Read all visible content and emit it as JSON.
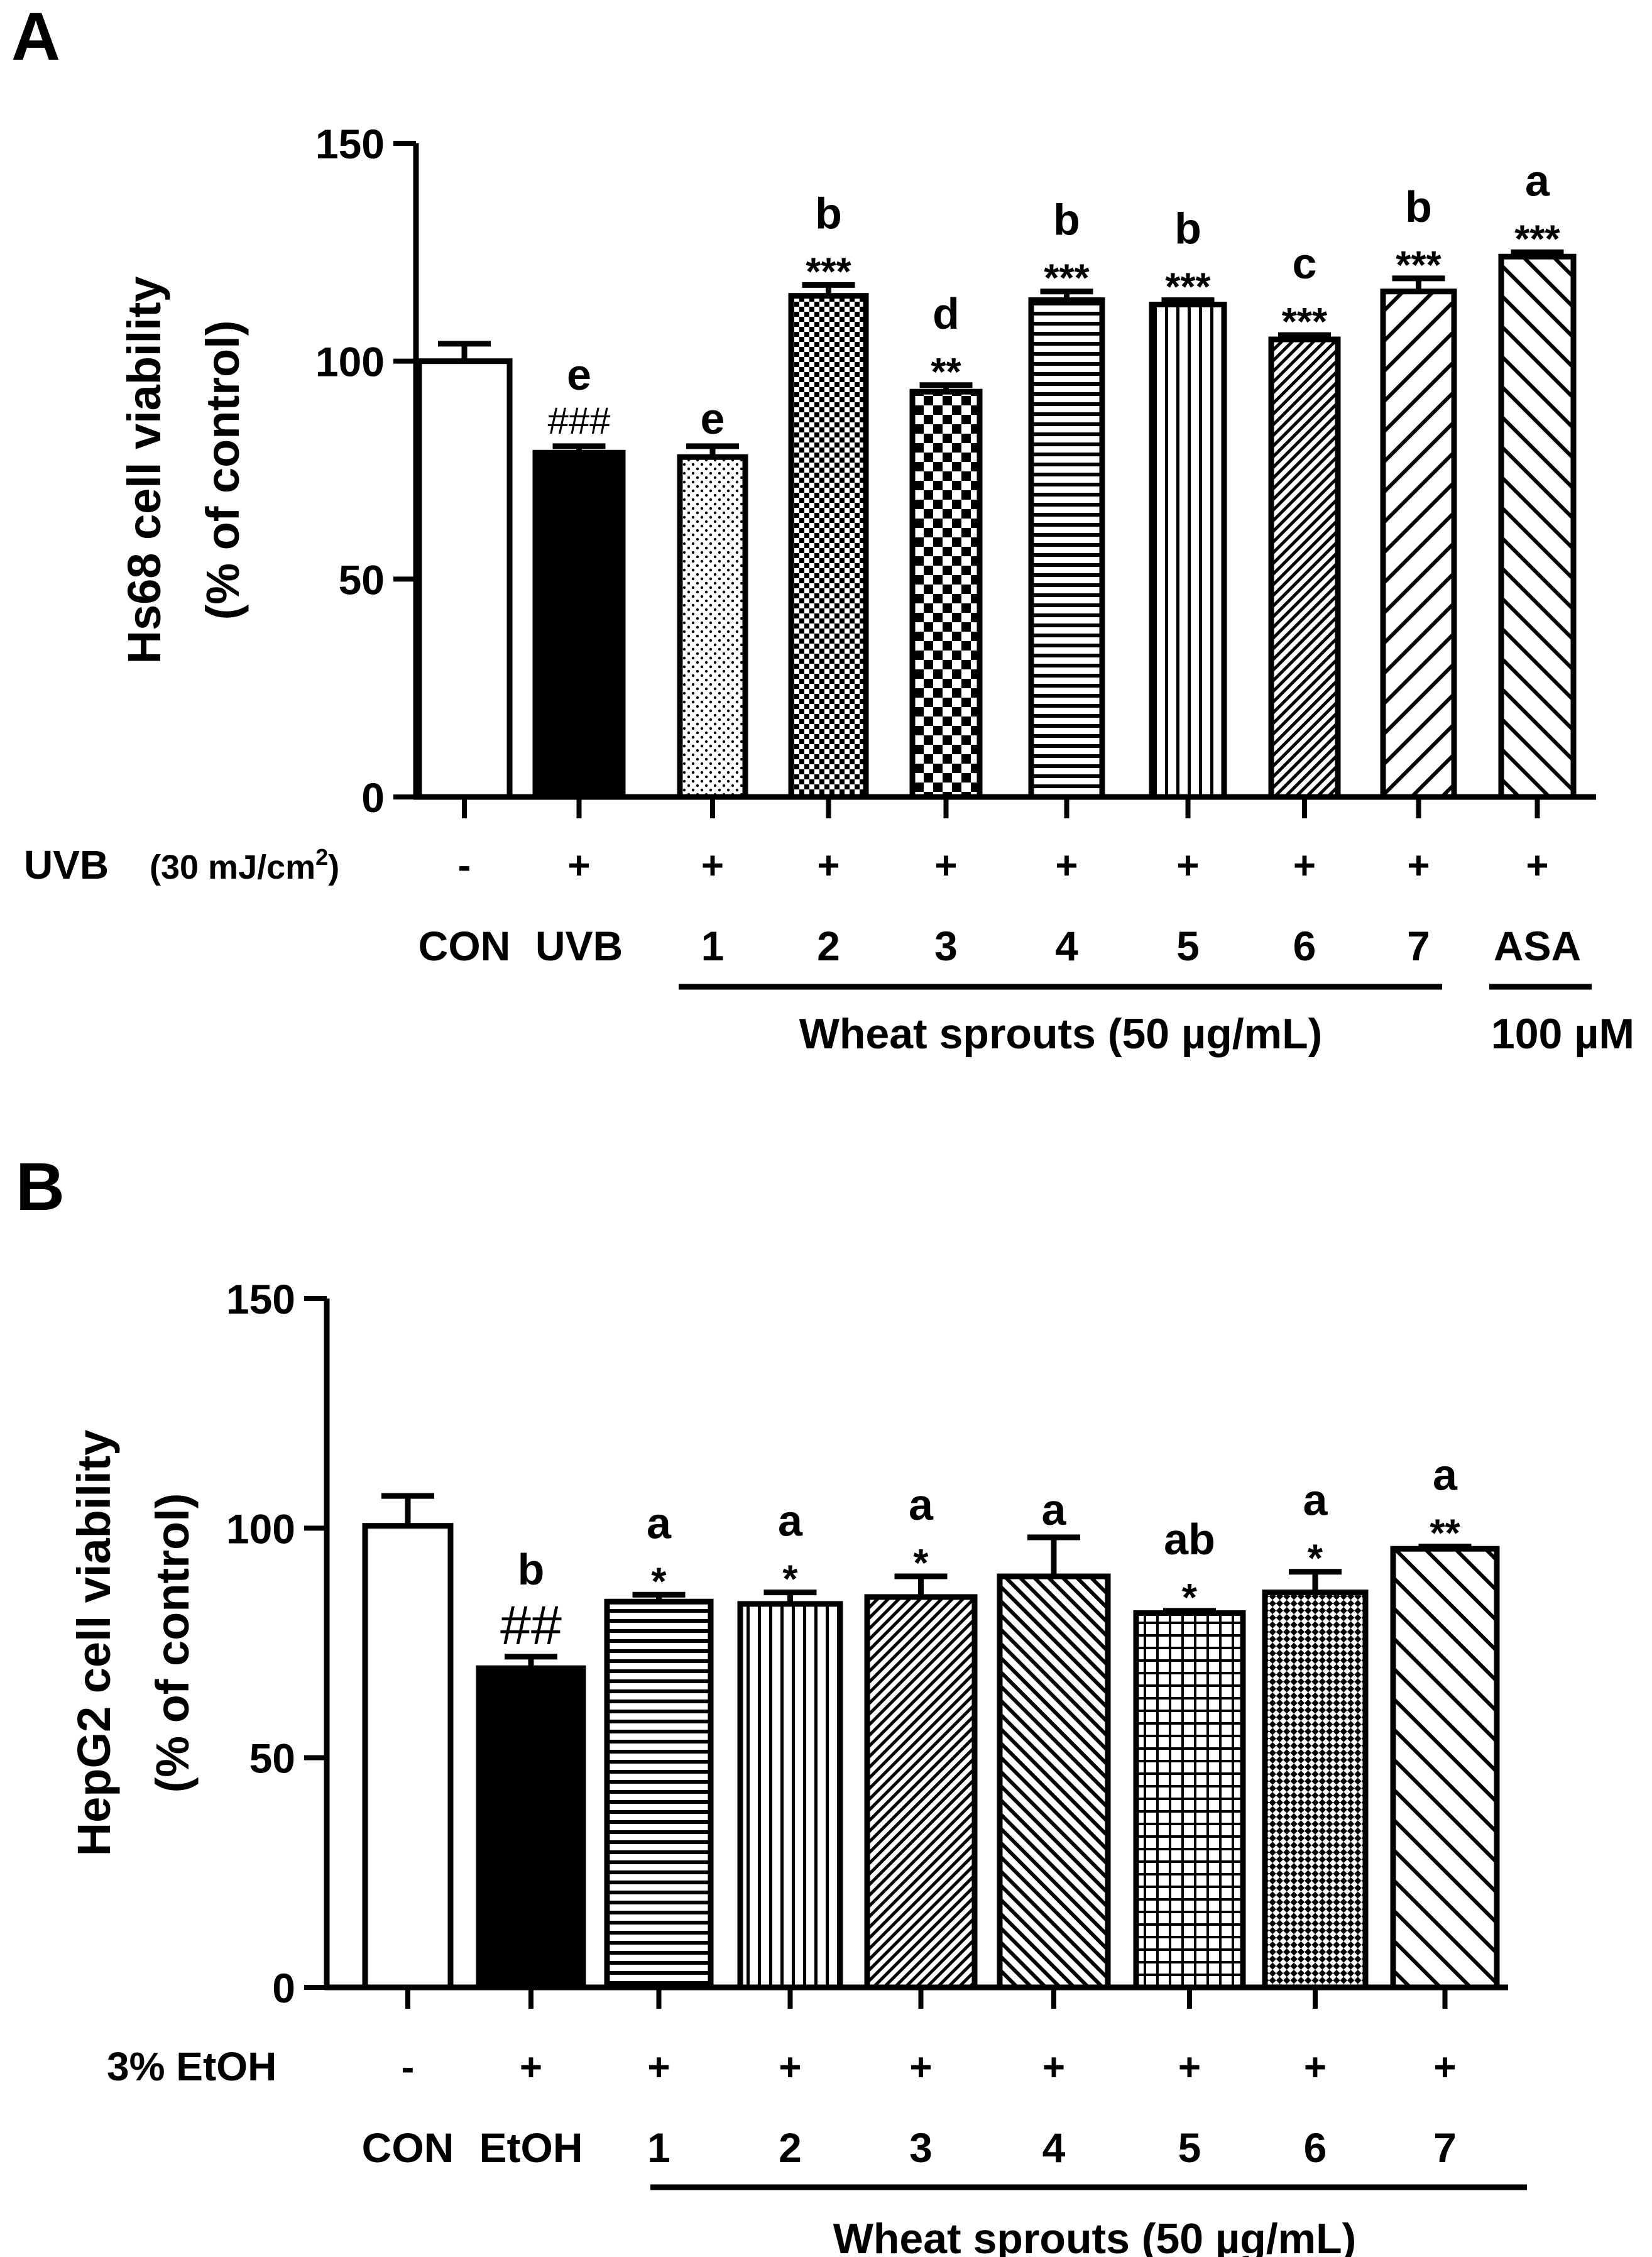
{
  "chart_data": [
    {
      "type": "bar",
      "panel_label": "A",
      "ylabel_line1": "Hs68 cell viability",
      "ylabel_line2": "(% of control)",
      "ylim": [
        0,
        150
      ],
      "yticks": [
        "0",
        "50",
        "100",
        "150"
      ],
      "values": [
        100,
        79,
        78,
        115,
        93,
        114,
        113,
        105,
        116,
        124
      ],
      "errors": [
        4,
        1.5,
        2.5,
        2.5,
        1.5,
        2,
        1,
        1,
        3,
        1
      ],
      "patterns": [
        "white",
        "black",
        "dots",
        "checker-fine",
        "checker-coarse",
        "hlines",
        "vlines",
        "diag-fine",
        "diag-coarse",
        "diag-back"
      ],
      "letters": [
        "",
        "e",
        "e",
        "b",
        "d",
        "b",
        "b",
        "c",
        "b",
        "a"
      ],
      "marks": [
        "",
        "###",
        "",
        "***",
        "**",
        "***",
        "***",
        "***",
        "***",
        "***"
      ],
      "treatment_label": "UVB",
      "treatment_unit": "(30 mJ/cm",
      "treatment_unit_sup": "2",
      "treatment_unit_end": ")",
      "treatment_signs": [
        "-",
        "+",
        "+",
        "+",
        "+",
        "+",
        "+",
        "+",
        "+",
        "+"
      ],
      "categories": [
        "CON",
        "UVB",
        "1",
        "2",
        "3",
        "4",
        "5",
        "6",
        "7",
        "ASA"
      ],
      "group_label": "Wheat sprouts (50 µg/mL)",
      "group2_label": "100 µM"
    },
    {
      "type": "bar",
      "panel_label": "B",
      "ylabel_line1": "HepG2 cell viability",
      "ylabel_line2": "(% of control)",
      "ylim": [
        0,
        150
      ],
      "yticks": [
        "0",
        "50",
        "100",
        "150"
      ],
      "values": [
        100.5,
        69.5,
        84,
        83.5,
        85,
        89.5,
        81.5,
        86,
        95.5
      ],
      "errors": [
        6.5,
        2.5,
        1.5,
        2.5,
        4.5,
        8.5,
        0.5,
        4.5,
        0.5
      ],
      "patterns": [
        "white",
        "black",
        "hlines",
        "vlines",
        "diag-fine",
        "diag-back-fine",
        "grid",
        "diamond",
        "diag-back"
      ],
      "letters": [
        "",
        "b",
        "a",
        "a",
        "a",
        "a",
        "ab",
        "a",
        "a"
      ],
      "marks": [
        "",
        "##",
        "*",
        "*",
        "*",
        "",
        "*",
        "*",
        "**"
      ],
      "treatment_label": "3% EtOH",
      "treatment_signs": [
        "-",
        "+",
        "+",
        "+",
        "+",
        "+",
        "+",
        "+",
        "+"
      ],
      "categories": [
        "CON",
        "EtOH",
        "1",
        "2",
        "3",
        "4",
        "5",
        "6",
        "7"
      ],
      "group_label": "Wheat sprouts (50 µg/mL)"
    }
  ]
}
